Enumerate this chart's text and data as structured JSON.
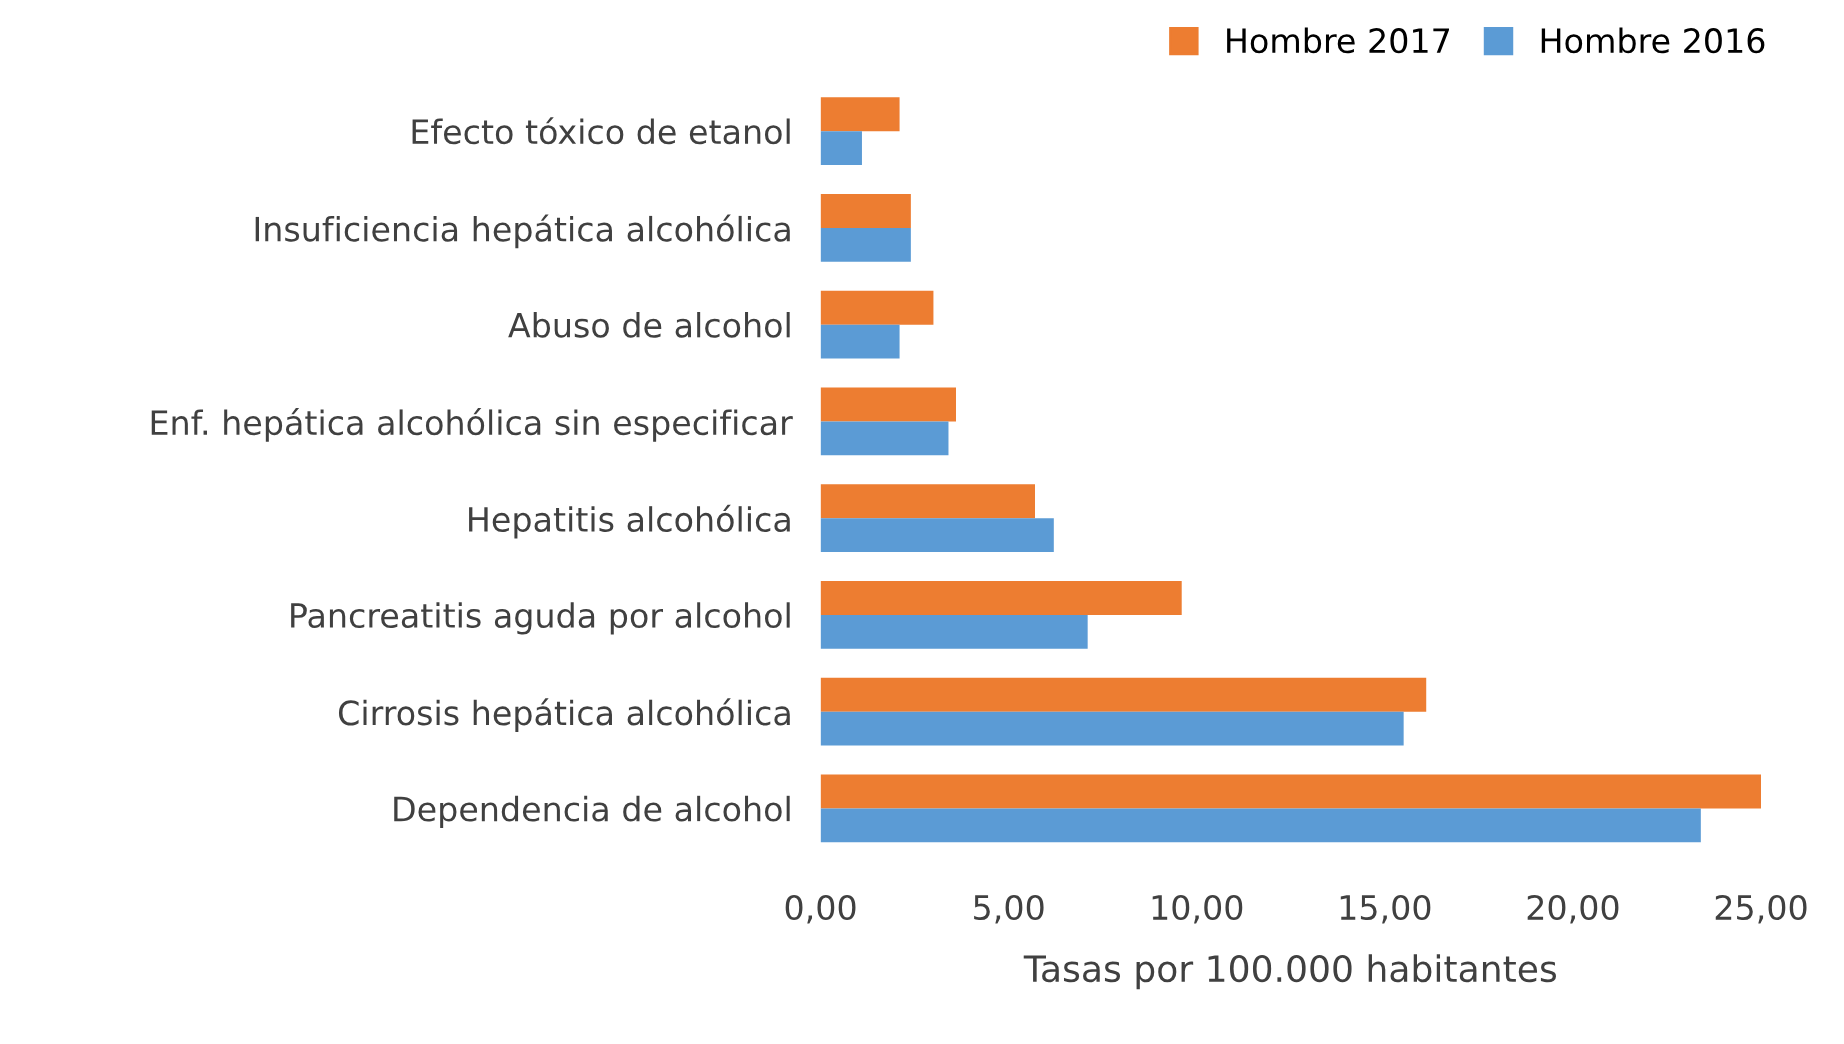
{
  "chart_data": {
    "type": "bar",
    "orientation": "horizontal",
    "xlabel": "Tasas por 100.000 habitantes",
    "categories": [
      "Efecto tóxico de etanol",
      "Insuficiencia hepática alcohólica",
      "Abuso de alcohol",
      "Enf. hepática alcohólica sin especificar",
      "Hepatitis alcohólica",
      "Pancreatitis aguda por alcohol",
      "Cirrosis hepática alcohólica",
      "Dependencia de alcohol"
    ],
    "series": [
      {
        "name": "Hombre 2017",
        "color": "#ed7d31",
        "values": [
          2.1,
          2.4,
          3.0,
          3.6,
          5.7,
          9.6,
          16.1,
          25.0
        ]
      },
      {
        "name": "Hombre 2016",
        "color": "#5b9bd5",
        "values": [
          1.1,
          2.4,
          2.1,
          3.4,
          6.2,
          7.1,
          15.5,
          23.4
        ]
      }
    ],
    "xlim": [
      0,
      25
    ],
    "xticks": [
      {
        "value": 0,
        "label": "0,00"
      },
      {
        "value": 5,
        "label": "5,00"
      },
      {
        "value": 10,
        "label": "10,00"
      },
      {
        "value": 15,
        "label": "15,00"
      },
      {
        "value": 20,
        "label": "20,00"
      },
      {
        "value": 25,
        "label": "25,00"
      }
    ],
    "grid": false,
    "legend": "top right"
  }
}
